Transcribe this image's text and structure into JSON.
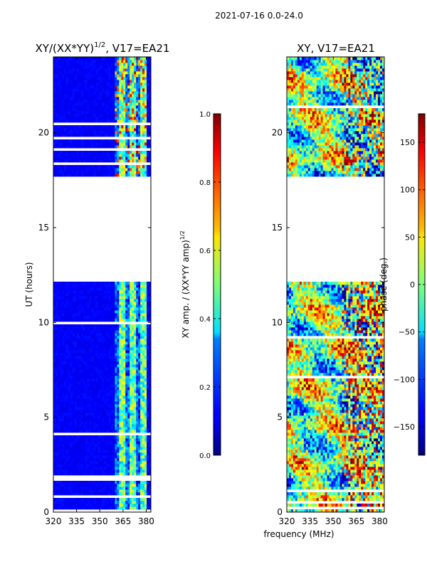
{
  "suptitle": "2021-07-16 0.0-24.0",
  "chart_data": [
    {
      "type": "heatmap",
      "title": "XY/(XX*YY)",
      "title_exponent": "1/2",
      "title_suffix": ", V17=EA21",
      "xlabel": "",
      "ylabel": "UT (hours)",
      "xlim": [
        320,
        383
      ],
      "ylim": [
        0,
        24
      ],
      "xticks": [
        "320",
        "335",
        "350",
        "365",
        "380"
      ],
      "xtick_values": [
        320,
        335,
        350,
        365,
        380
      ],
      "yticks": [
        "0",
        "5",
        "10",
        "15",
        "20"
      ],
      "ytick_values": [
        0,
        5,
        10,
        15,
        20
      ],
      "data_gaps_hours": [
        [
          12.2,
          16.6
        ],
        [
          16.7,
          16.9
        ],
        [
          17.0,
          17.7
        ]
      ],
      "active_band_mhz": [
        360,
        380
      ],
      "colorbar": {
        "label": "XY amp. / (XX*YY amp)",
        "label_exponent": "1/2",
        "range": [
          0.0,
          1.0
        ],
        "ticks": [
          "0.0",
          "0.2",
          "0.4",
          "0.6",
          "0.8",
          "1.0"
        ],
        "tick_values": [
          0.0,
          0.2,
          0.4,
          0.6,
          0.8,
          1.0
        ],
        "colormap": "jet"
      }
    },
    {
      "type": "heatmap",
      "title": "XY, V17=EA21",
      "xlabel": "frequency (MHz)",
      "ylabel": "",
      "xlim": [
        320,
        383
      ],
      "ylim": [
        0,
        24
      ],
      "xticks": [
        "320",
        "335",
        "350",
        "365",
        "380"
      ],
      "xtick_values": [
        320,
        335,
        350,
        365,
        380
      ],
      "yticks": [
        "0",
        "5",
        "10",
        "15",
        "20"
      ],
      "ytick_values": [
        0,
        5,
        10,
        15,
        20
      ],
      "data_gaps_hours": [
        [
          12.2,
          16.6
        ],
        [
          16.7,
          16.9
        ],
        [
          17.0,
          17.7
        ]
      ],
      "colorbar": {
        "label": "phase (deg.)",
        "range": [
          -180,
          180
        ],
        "ticks": [
          "−150",
          "−100",
          "−50",
          "0",
          "50",
          "100",
          "150"
        ],
        "tick_values": [
          -150,
          -100,
          -50,
          0,
          50,
          100,
          150
        ],
        "colormap": "jet"
      }
    }
  ]
}
